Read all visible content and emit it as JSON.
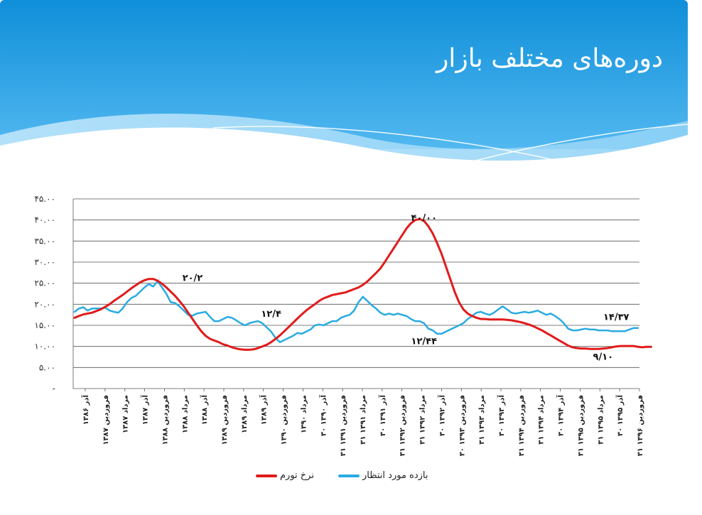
{
  "slide": {
    "title": "دوره‌های مختلف بازار"
  },
  "colors": {
    "header_top": "#1192dc",
    "header_bottom": "#7fcaf5",
    "series_blue": "#29abe2",
    "series_red": "#e11b1b",
    "grid": "#555555"
  },
  "chart_data": {
    "type": "line",
    "ylim": [
      0,
      45
    ],
    "yticks": [
      "-",
      "۵.۰۰",
      "۱۰.۰۰",
      "۱۵.۰۰",
      "۲۰.۰۰",
      "۲۵.۰۰",
      "۳۰.۰۰",
      "۳۵.۰۰",
      "۴۰.۰۰",
      "۴۵.۰۰"
    ],
    "ytick_values": [
      0,
      5,
      10,
      15,
      20,
      25,
      30,
      35,
      40,
      45
    ],
    "grid": "horizontal",
    "legend_position": "bottom",
    "x_labels": [
      "آذر ۱۳۸۶",
      "فروردین ۱۳۸۷",
      "مرداد ۱۳۸۷",
      "آذر ۱۳۸۷",
      "فروردین ۱۳۸۸",
      "مرداد ۱۳۸۸",
      "آذر ۱۳۸۸",
      "فروردین ۱۳۸۹",
      "مرداد ۱۳۸۹",
      "آذر ۱۳۸۹",
      "فروردین ۱۳۹۰",
      "مرداد ۱۳۹۰",
      "۳۰ آذر ۱۳۹۰",
      "۳۱ فروردین ۱۳۹۱",
      "۳۱ مرداد ۱۳۹۱",
      "۳۰ آذر ۱۳۹۱",
      "۳۱ فروردین ۱۳۹۲",
      "۳۱ مرداد ۱۳۹۲",
      "۳۰ آذر ۱۳۹۲",
      "۳۰ فروردین ۱۳۹۳",
      "۳۱ مرداد ۱۳۹۳",
      "۳۰ آذر ۱۳۹۳",
      "۳۱ فروردین ۱۳۹۴",
      "۳۱ مرداد ۱۳۹۴",
      "۳۰ آذر ۱۳۹۴",
      "۳۱ فروردین ۱۳۹۵",
      "۳۱ مرداد ۱۳۹۵",
      "۳۰ آذر ۱۳۹۵",
      "۳۱ فروردین ۱۳۹۶"
    ],
    "series": [
      {
        "name": "بازده مورد انتظار",
        "color": "#29abe2",
        "values": [
          18.2,
          19.0,
          19.3,
          18.5,
          19.0,
          19.0,
          19.0,
          19.2,
          18.5,
          18.2,
          18.0,
          19.0,
          20.5,
          21.5,
          22.0,
          23.0,
          24.0,
          24.8,
          24.2,
          25.5,
          24.0,
          22.5,
          20.5,
          20.3,
          19.5,
          18.5,
          17.5,
          17.3,
          17.8,
          18.0,
          18.2,
          17.0,
          16.0,
          16.0,
          16.5,
          17.0,
          16.8,
          16.2,
          15.5,
          15.0,
          15.5,
          15.8,
          16.0,
          15.5,
          14.5,
          13.5,
          12.0,
          11.0,
          11.5,
          12.0,
          12.5,
          13.2,
          13.0,
          13.5,
          14.0,
          15.0,
          15.2,
          15.0,
          15.5,
          16.0,
          16.0,
          16.8,
          17.2,
          17.5,
          18.5,
          20.5,
          21.8,
          20.8,
          19.8,
          19.0,
          18.0,
          17.5,
          17.8,
          17.5,
          17.8,
          17.5,
          17.2,
          16.5,
          16.0,
          16.0,
          15.5,
          14.2,
          13.8,
          13.0,
          13.0,
          13.5,
          14.0,
          14.5,
          15.0,
          15.5,
          16.5,
          17.2,
          18.0,
          18.2,
          17.8,
          17.5,
          18.0,
          18.8,
          19.5,
          18.8,
          18.0,
          17.8,
          18.0,
          18.2,
          18.0,
          18.2,
          18.5,
          18.0,
          17.5,
          17.8,
          17.2,
          16.5,
          15.5,
          14.2,
          13.8,
          13.8,
          14.0,
          14.2,
          14.0,
          14.0,
          13.8,
          13.8,
          13.8,
          13.6,
          13.6,
          13.6,
          13.6,
          14.0,
          14.37,
          14.37
        ]
      },
      {
        "name": "نرخ تورم",
        "color": "#e11b1b",
        "values": [
          16.8,
          17.2,
          17.6,
          17.8,
          18.0,
          18.4,
          18.8,
          19.4,
          20.0,
          20.8,
          21.5,
          22.2,
          23.0,
          23.8,
          24.5,
          25.2,
          25.7,
          26.0,
          26.0,
          25.6,
          24.9,
          24.0,
          23.0,
          22.0,
          20.8,
          19.5,
          18.0,
          16.5,
          15.0,
          13.6,
          12.5,
          11.8,
          11.4,
          11.0,
          10.5,
          10.2,
          9.8,
          9.5,
          9.3,
          9.2,
          9.2,
          9.3,
          9.6,
          10.0,
          10.4,
          11.0,
          11.8,
          12.6,
          13.6,
          14.6,
          15.6,
          16.6,
          17.6,
          18.5,
          19.3,
          20.0,
          20.8,
          21.4,
          21.8,
          22.2,
          22.4,
          22.6,
          22.8,
          23.2,
          23.6,
          24.0,
          24.6,
          25.4,
          26.4,
          27.4,
          28.5,
          30.0,
          31.6,
          33.2,
          34.8,
          36.4,
          38.0,
          39.2,
          40.0,
          40.2,
          39.8,
          38.5,
          36.8,
          34.5,
          32.0,
          29.0,
          26.0,
          23.0,
          20.5,
          18.8,
          17.8,
          17.2,
          16.8,
          16.5,
          16.5,
          16.4,
          16.4,
          16.4,
          16.4,
          16.3,
          16.2,
          16.0,
          15.8,
          15.5,
          15.2,
          14.8,
          14.3,
          13.8,
          13.2,
          12.6,
          12.0,
          11.4,
          10.8,
          10.2,
          9.8,
          9.6,
          9.5,
          9.5,
          9.4,
          9.4,
          9.4,
          9.5,
          9.6,
          9.8,
          10.0,
          10.1,
          10.1,
          10.1,
          10.1,
          9.9,
          9.8,
          9.9,
          9.9
        ]
      }
    ],
    "annotations": [
      {
        "text": "۲۰/۲",
        "x_index": 27,
        "y": 25.5
      },
      {
        "text": "۱۲/۴",
        "x_index": 45,
        "y": 17.0
      },
      {
        "text": "۴۰/۰۰",
        "x_index": 80,
        "y": 39.8
      },
      {
        "text": "۱۲/۴۴",
        "x_index": 80,
        "y": 10.5
      },
      {
        "text": "۱۴/۳۷",
        "x_index": 124,
        "y": 16.3
      },
      {
        "text": "۹/۱۰",
        "x_index": 121,
        "y": 6.8
      }
    ]
  },
  "legend": {
    "items": [
      {
        "label": "بازده مورد انتظار",
        "color": "#29abe2"
      },
      {
        "label": "نرخ تورم",
        "color": "#e11b1b"
      }
    ]
  }
}
